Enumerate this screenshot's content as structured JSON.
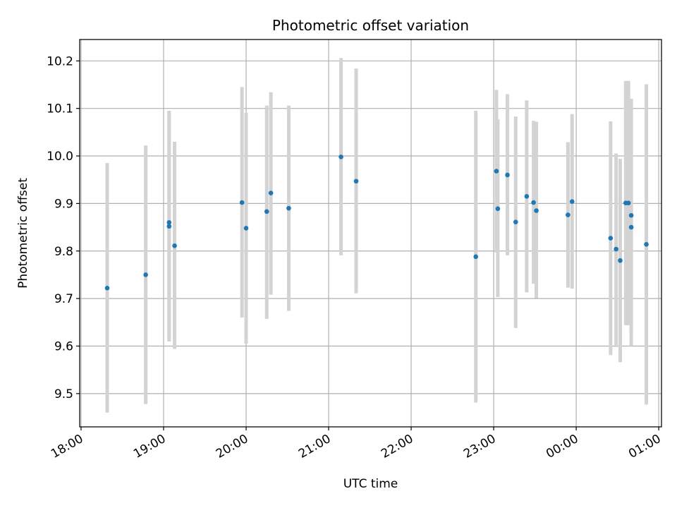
{
  "chart_data": {
    "type": "scatter",
    "title": "Photometric offset variation",
    "xlabel": "UTC time",
    "ylabel": "Photometric offset",
    "x_unit": "UTC time (HH:MM), spanning midnight",
    "xlim": [
      "17:59",
      "01:02"
    ],
    "ylim": [
      9.43,
      10.245
    ],
    "xticks": [
      "18:00",
      "19:00",
      "20:00",
      "21:00",
      "22:00",
      "23:00",
      "00:00",
      "01:00"
    ],
    "yticks": [
      9.5,
      9.6,
      9.7,
      9.8,
      9.9,
      10.0,
      10.1,
      10.2
    ],
    "grid": true,
    "errorbar_color": "#d3d3d3",
    "point_color": "#1f77b4",
    "series": [
      {
        "points": [
          {
            "x": "18:19",
            "y": 9.722,
            "ylo": 9.46,
            "yhi": 9.985
          },
          {
            "x": "18:47",
            "y": 9.75,
            "ylo": 9.478,
            "yhi": 10.022
          },
          {
            "x": "19:04",
            "y": 9.86,
            "ylo": 9.61,
            "yhi": 10.095
          },
          {
            "x": "19:04",
            "y": 9.852,
            "ylo": 9.61,
            "yhi": 10.095
          },
          {
            "x": "19:08",
            "y": 9.811,
            "ylo": 9.594,
            "yhi": 10.03
          },
          {
            "x": "19:57",
            "y": 9.902,
            "ylo": 9.66,
            "yhi": 10.145
          },
          {
            "x": "20:00",
            "y": 9.848,
            "ylo": 9.605,
            "yhi": 10.091
          },
          {
            "x": "20:15",
            "y": 9.883,
            "ylo": 9.657,
            "yhi": 10.106
          },
          {
            "x": "20:18",
            "y": 9.922,
            "ylo": 9.708,
            "yhi": 10.134
          },
          {
            "x": "20:31",
            "y": 9.89,
            "ylo": 9.674,
            "yhi": 10.106
          },
          {
            "x": "21:09",
            "y": 9.998,
            "ylo": 9.791,
            "yhi": 10.206
          },
          {
            "x": "21:20",
            "y": 9.947,
            "ylo": 9.711,
            "yhi": 10.184
          },
          {
            "x": "22:47",
            "y": 9.788,
            "ylo": 9.481,
            "yhi": 10.095
          },
          {
            "x": "23:02",
            "y": 9.968,
            "ylo": 9.797,
            "yhi": 10.139
          },
          {
            "x": "23:03",
            "y": 9.889,
            "ylo": 9.703,
            "yhi": 10.077
          },
          {
            "x": "23:10",
            "y": 9.96,
            "ylo": 9.791,
            "yhi": 10.13
          },
          {
            "x": "23:16",
            "y": 9.861,
            "ylo": 9.638,
            "yhi": 10.083
          },
          {
            "x": "23:24",
            "y": 9.915,
            "ylo": 9.713,
            "yhi": 10.117
          },
          {
            "x": "23:29",
            "y": 9.902,
            "ylo": 9.731,
            "yhi": 10.074
          },
          {
            "x": "23:31",
            "y": 9.885,
            "ylo": 9.701,
            "yhi": 10.072
          },
          {
            "x": "23:54",
            "y": 9.876,
            "ylo": 9.723,
            "yhi": 10.029
          },
          {
            "x": "23:57",
            "y": 9.904,
            "ylo": 9.721,
            "yhi": 10.088
          },
          {
            "x": "00:25",
            "y": 9.827,
            "ylo": 9.581,
            "yhi": 10.073
          },
          {
            "x": "00:29",
            "y": 9.804,
            "ylo": 9.598,
            "yhi": 10.005
          },
          {
            "x": "00:32",
            "y": 9.78,
            "ylo": 9.566,
            "yhi": 9.994
          },
          {
            "x": "00:36",
            "y": 9.901,
            "ylo": 9.644,
            "yhi": 10.158
          },
          {
            "x": "00:38",
            "y": 9.901,
            "ylo": 9.644,
            "yhi": 10.158
          },
          {
            "x": "00:40",
            "y": 9.85,
            "ylo": 9.63,
            "yhi": 10.12
          },
          {
            "x": "00:40",
            "y": 9.875,
            "ylo": 9.6,
            "yhi": 10.12
          },
          {
            "x": "00:51",
            "y": 9.814,
            "ylo": 9.477,
            "yhi": 10.151
          }
        ]
      }
    ]
  }
}
